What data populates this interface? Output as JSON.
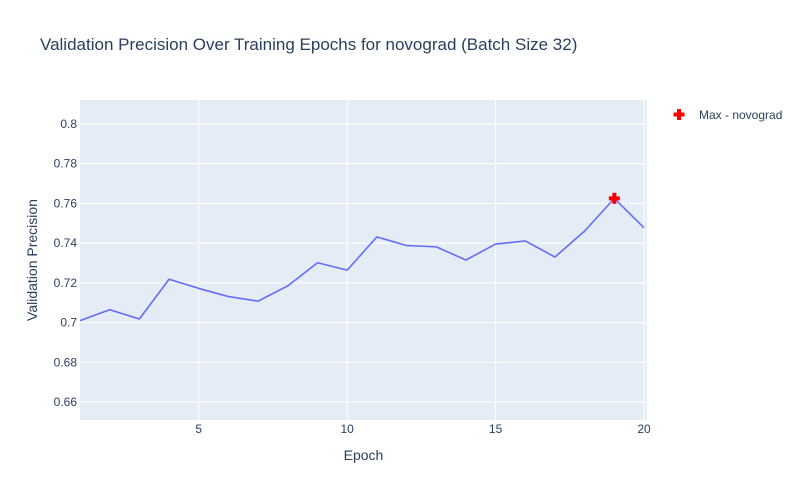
{
  "chart_data": {
    "type": "line",
    "title": "Validation Precision Over Training Epochs for novograd (Batch Size 32)",
    "xlabel": "Epoch",
    "ylabel": "Validation Precision",
    "xlim": [
      1,
      20.1
    ],
    "ylim": [
      0.651,
      0.812
    ],
    "x_ticks": [
      5,
      10,
      15,
      20
    ],
    "y_ticks": [
      0.66,
      0.68,
      0.7,
      0.72,
      0.74,
      0.76,
      0.78,
      0.8
    ],
    "x_tick_labels": [
      "5",
      "10",
      "15",
      "20"
    ],
    "y_tick_labels": [
      "0.66",
      "0.68",
      "0.7",
      "0.72",
      "0.74",
      "0.76",
      "0.78",
      "0.8"
    ],
    "grid": true,
    "legend_position": "top-right",
    "series": [
      {
        "x": [
          1,
          2,
          3,
          4,
          5,
          6,
          7,
          8,
          9,
          10,
          11,
          12,
          13,
          14,
          15,
          16,
          17,
          18,
          19,
          20
        ],
        "y": [
          0.701,
          0.7065,
          0.7018,
          0.7218,
          0.7172,
          0.7131,
          0.7108,
          0.7185,
          0.7301,
          0.7264,
          0.7431,
          0.7388,
          0.7381,
          0.7315,
          0.7395,
          0.7411,
          0.733,
          0.7461,
          0.7625,
          0.7477
        ],
        "color": "#636efa"
      },
      {
        "name": "Max - novograd",
        "x": [
          19
        ],
        "y": [
          0.7625
        ],
        "marker": "cross",
        "color": "#ff0000"
      }
    ],
    "colors": {
      "plot_background": "#e5ecf6",
      "grid": "#ffffff",
      "text": "#2a3f5f"
    }
  }
}
